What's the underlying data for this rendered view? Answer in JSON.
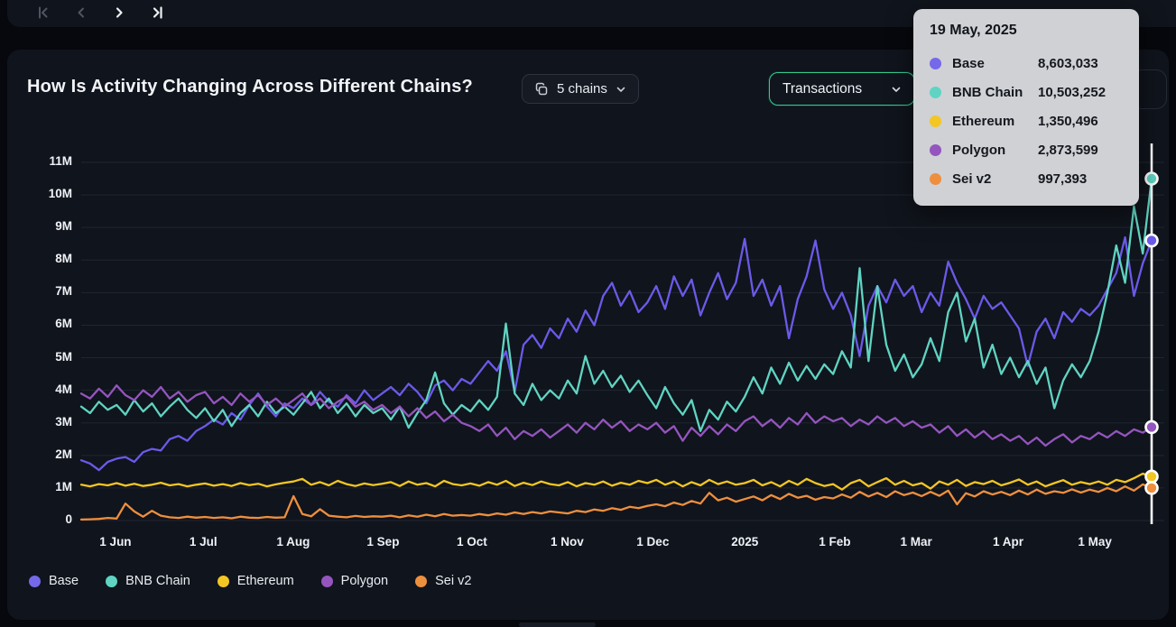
{
  "toolbar": {
    "nav": [
      {
        "label": "first-page",
        "enabled": false
      },
      {
        "label": "previous-page",
        "enabled": false
      },
      {
        "label": "next-page",
        "enabled": true
      },
      {
        "label": "last-page",
        "enabled": true
      }
    ]
  },
  "header": {
    "title": "How Is Activity Changing Across Different Chains?",
    "chains_button": {
      "label": "5 chains"
    },
    "metric_select": {
      "value": "Transactions",
      "accent": "#35c98e"
    }
  },
  "tooltip": {
    "date": "19 May, 2025",
    "rows": [
      {
        "name": "Base",
        "value": "8,603,033",
        "color": "#7668ea"
      },
      {
        "name": "BNB Chain",
        "value": "10,503,252",
        "color": "#5fd4c2"
      },
      {
        "name": "Ethereum",
        "value": "1,350,496",
        "color": "#f3c623"
      },
      {
        "name": "Polygon",
        "value": "2,873,599",
        "color": "#9455be"
      },
      {
        "name": "Sei v2",
        "value": "997,393",
        "color": "#ee8f3e"
      }
    ]
  },
  "legend": {
    "items": [
      {
        "label": "Base",
        "color": "#7668ea"
      },
      {
        "label": "BNB Chain",
        "color": "#5fd4c2"
      },
      {
        "label": "Ethereum",
        "color": "#f3c623"
      },
      {
        "label": "Polygon",
        "color": "#9455be"
      },
      {
        "label": "Sei v2",
        "color": "#ee8f3e"
      }
    ]
  },
  "chart_data": {
    "type": "line",
    "title": "How Is Activity Changing Across Different Chains?",
    "metric": "Transactions",
    "x_range": [
      "20 May 2024",
      "19 May 2025"
    ],
    "x_ticks": [
      "1 Jun",
      "1 Jul",
      "1 Aug",
      "1 Sep",
      "1 Oct",
      "1 Nov",
      "1 Dec",
      "2025",
      "1 Feb",
      "1 Mar",
      "1 Apr",
      "1 May"
    ],
    "y_ticks": [
      "11M",
      "10M",
      "9M",
      "8M",
      "7M",
      "6M",
      "5M",
      "4M",
      "3M",
      "2M",
      "1M",
      "0"
    ],
    "ylim": [
      0,
      11500000
    ],
    "grid": "horizontal",
    "legend_position": "bottom-left",
    "units": "transactions per day (values in millions)",
    "highlight": {
      "date": "19 May, 2025",
      "values": {
        "Base": 8603033,
        "BNB Chain": 10503252,
        "Ethereum": 1350496,
        "Polygon": 2873599,
        "Sei v2": 997393
      }
    },
    "series": [
      {
        "name": "Base",
        "color": "#6a5ae8",
        "values_m": [
          1.85,
          1.75,
          1.55,
          1.8,
          1.9,
          1.95,
          1.8,
          2.1,
          2.2,
          2.15,
          2.5,
          2.6,
          2.45,
          2.75,
          2.9,
          3.1,
          2.95,
          3.3,
          3.1,
          3.55,
          3.9,
          3.5,
          3.2,
          3.6,
          3.45,
          3.75,
          3.55,
          3.95,
          3.65,
          3.5,
          3.85,
          3.6,
          4.0,
          3.7,
          3.9,
          4.1,
          3.85,
          4.2,
          3.95,
          3.6,
          4.15,
          4.3,
          4.0,
          4.35,
          4.2,
          4.55,
          4.9,
          4.6,
          5.2,
          3.95,
          5.4,
          5.7,
          5.3,
          5.9,
          5.6,
          6.2,
          5.8,
          6.45,
          6.0,
          6.9,
          7.3,
          6.6,
          7.05,
          6.4,
          6.7,
          7.2,
          6.5,
          7.5,
          6.9,
          7.4,
          6.3,
          7.0,
          7.6,
          6.8,
          7.3,
          8.65,
          6.9,
          7.4,
          6.6,
          7.2,
          5.6,
          6.8,
          7.5,
          8.6,
          7.1,
          6.5,
          7.0,
          6.3,
          5.05,
          6.6,
          7.2,
          6.7,
          7.4,
          6.9,
          7.2,
          6.4,
          7.0,
          6.6,
          7.95,
          7.3,
          6.8,
          6.2,
          6.9,
          6.5,
          6.7,
          6.3,
          5.9,
          4.75,
          5.8,
          6.2,
          5.6,
          6.4,
          6.1,
          6.5,
          6.3,
          6.6,
          7.1,
          7.6,
          8.7,
          6.9,
          7.9,
          8.6
        ]
      },
      {
        "name": "BNB Chain",
        "color": "#5fd4c2",
        "values_m": [
          3.5,
          3.3,
          3.65,
          3.4,
          3.55,
          3.25,
          3.7,
          3.35,
          3.6,
          3.2,
          3.5,
          3.75,
          3.4,
          3.15,
          3.45,
          3.05,
          3.4,
          2.9,
          3.3,
          3.55,
          3.2,
          3.65,
          3.3,
          3.5,
          3.25,
          3.6,
          3.95,
          3.45,
          3.75,
          3.3,
          3.6,
          3.2,
          3.55,
          3.3,
          3.45,
          3.1,
          3.5,
          2.85,
          3.3,
          3.7,
          4.55,
          3.6,
          3.25,
          3.55,
          3.35,
          3.7,
          3.4,
          3.8,
          6.05,
          3.9,
          3.55,
          4.2,
          3.7,
          4.0,
          3.75,
          4.3,
          3.9,
          5.05,
          4.2,
          4.6,
          4.1,
          4.45,
          3.95,
          4.3,
          3.85,
          3.45,
          4.1,
          3.6,
          3.25,
          3.7,
          2.75,
          3.4,
          3.1,
          3.65,
          3.35,
          3.8,
          4.4,
          3.9,
          4.7,
          4.2,
          4.85,
          4.3,
          4.75,
          4.35,
          4.8,
          4.5,
          5.2,
          4.7,
          7.75,
          4.9,
          7.2,
          5.4,
          4.6,
          5.1,
          4.4,
          4.8,
          5.6,
          4.9,
          6.4,
          7.0,
          5.5,
          6.2,
          4.7,
          5.4,
          4.5,
          5.0,
          4.4,
          4.9,
          4.2,
          4.7,
          3.45,
          4.3,
          4.8,
          4.4,
          4.9,
          5.8,
          7.0,
          8.45,
          7.3,
          9.65,
          8.2,
          10.5
        ]
      },
      {
        "name": "Ethereum",
        "color": "#f3c623",
        "values_m": [
          1.1,
          1.05,
          1.12,
          1.08,
          1.15,
          1.07,
          1.13,
          1.06,
          1.1,
          1.16,
          1.08,
          1.12,
          1.05,
          1.1,
          1.14,
          1.07,
          1.12,
          1.06,
          1.15,
          1.09,
          1.13,
          1.05,
          1.11,
          1.16,
          1.2,
          1.28,
          1.1,
          1.18,
          1.08,
          1.22,
          1.12,
          1.06,
          1.14,
          1.09,
          1.13,
          1.18,
          1.06,
          1.2,
          1.1,
          1.15,
          1.05,
          1.22,
          1.12,
          1.08,
          1.14,
          1.07,
          1.18,
          1.1,
          1.22,
          1.06,
          1.16,
          1.09,
          1.2,
          1.12,
          1.08,
          1.18,
          1.05,
          1.15,
          1.1,
          1.2,
          1.07,
          1.16,
          1.1,
          1.22,
          1.15,
          1.25,
          1.1,
          1.2,
          1.05,
          1.18,
          1.08,
          1.25,
          1.12,
          1.2,
          1.1,
          1.15,
          1.25,
          1.08,
          1.18,
          1.05,
          1.22,
          1.1,
          1.28,
          1.15,
          1.06,
          1.12,
          0.95,
          1.15,
          1.25,
          1.05,
          1.18,
          1.3,
          1.1,
          1.22,
          1.08,
          1.15,
          0.98,
          1.2,
          1.1,
          1.25,
          1.06,
          1.18,
          1.12,
          1.22,
          1.08,
          1.16,
          1.26,
          1.1,
          1.2,
          1.05,
          1.15,
          1.24,
          1.1,
          1.18,
          1.12,
          1.2,
          1.1,
          1.25,
          1.18,
          1.3,
          1.44,
          1.35
        ]
      },
      {
        "name": "Polygon",
        "color": "#9455be",
        "values_m": [
          3.9,
          3.75,
          4.05,
          3.8,
          4.15,
          3.85,
          3.7,
          4.0,
          3.8,
          4.1,
          3.75,
          3.95,
          3.65,
          3.85,
          3.95,
          3.6,
          3.8,
          3.55,
          3.9,
          3.65,
          3.85,
          3.55,
          3.75,
          3.5,
          3.7,
          3.9,
          3.55,
          3.75,
          3.45,
          3.65,
          3.8,
          3.5,
          3.65,
          3.4,
          3.55,
          3.3,
          3.5,
          3.2,
          3.45,
          3.15,
          3.35,
          3.05,
          3.25,
          3.0,
          2.9,
          2.75,
          2.95,
          2.6,
          2.85,
          2.5,
          2.75,
          2.6,
          2.8,
          2.55,
          2.75,
          2.95,
          2.7,
          3.0,
          2.8,
          3.1,
          2.85,
          3.05,
          2.75,
          2.95,
          2.8,
          3.0,
          2.7,
          2.9,
          2.45,
          2.85,
          2.6,
          2.9,
          2.65,
          2.95,
          2.75,
          3.05,
          3.2,
          2.9,
          3.1,
          2.85,
          3.15,
          2.95,
          3.3,
          3.0,
          3.2,
          3.05,
          3.15,
          2.9,
          3.1,
          2.95,
          3.2,
          3.0,
          3.15,
          2.9,
          3.05,
          2.85,
          2.95,
          2.7,
          2.9,
          2.6,
          2.8,
          2.55,
          2.75,
          2.5,
          2.65,
          2.45,
          2.6,
          2.35,
          2.55,
          2.3,
          2.5,
          2.65,
          2.4,
          2.6,
          2.5,
          2.7,
          2.55,
          2.75,
          2.6,
          2.8,
          2.7,
          2.87
        ]
      },
      {
        "name": "Sei v2",
        "color": "#ee8f3e",
        "values_m": [
          0.03,
          0.04,
          0.05,
          0.08,
          0.06,
          0.52,
          0.28,
          0.12,
          0.3,
          0.15,
          0.1,
          0.08,
          0.12,
          0.09,
          0.11,
          0.08,
          0.1,
          0.07,
          0.12,
          0.09,
          0.08,
          0.11,
          0.09,
          0.1,
          0.75,
          0.2,
          0.13,
          0.35,
          0.15,
          0.12,
          0.1,
          0.14,
          0.11,
          0.13,
          0.12,
          0.15,
          0.1,
          0.16,
          0.12,
          0.18,
          0.13,
          0.2,
          0.15,
          0.17,
          0.15,
          0.2,
          0.16,
          0.22,
          0.18,
          0.25,
          0.2,
          0.26,
          0.22,
          0.28,
          0.25,
          0.22,
          0.3,
          0.26,
          0.34,
          0.3,
          0.38,
          0.33,
          0.42,
          0.38,
          0.45,
          0.5,
          0.44,
          0.55,
          0.48,
          0.6,
          0.52,
          0.85,
          0.62,
          0.7,
          0.58,
          0.66,
          0.74,
          0.62,
          0.78,
          0.66,
          0.82,
          0.7,
          0.76,
          0.64,
          0.72,
          0.68,
          0.8,
          0.7,
          0.88,
          0.74,
          0.85,
          0.72,
          0.9,
          0.78,
          0.86,
          0.75,
          0.88,
          0.76,
          0.92,
          0.5,
          0.84,
          0.74,
          0.9,
          0.8,
          0.88,
          0.78,
          0.92,
          0.8,
          0.95,
          0.82,
          0.9,
          0.85,
          0.96,
          0.86,
          0.95,
          0.88,
          1.0,
          0.9,
          1.05,
          0.92,
          1.11,
          1.0
        ]
      }
    ]
  }
}
